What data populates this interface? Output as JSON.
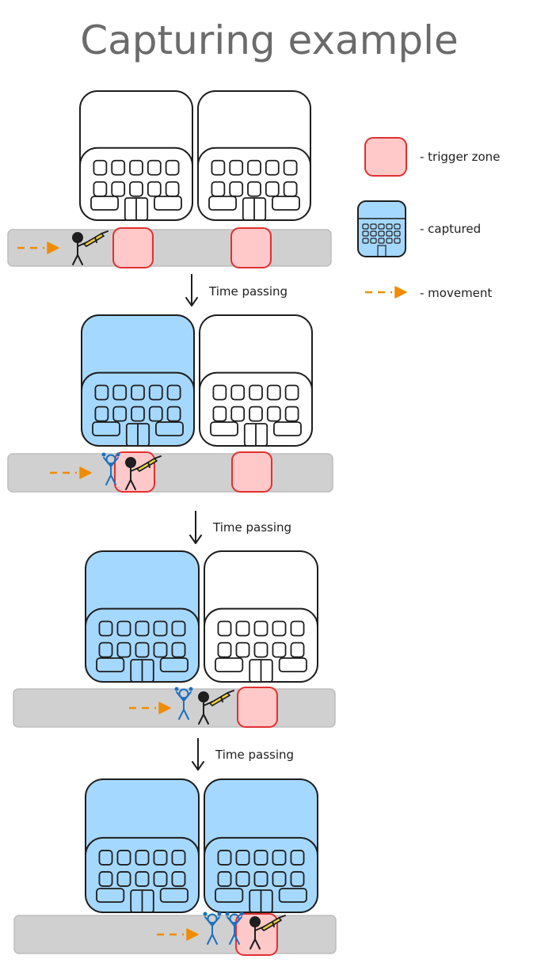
{
  "title": "Capturing example",
  "legend": {
    "trigger_zone": "- trigger zone",
    "captured": "- captured",
    "movement": "- movement"
  },
  "step_label": "Time passing",
  "colors": {
    "trigger_fill": "#ffc9c9",
    "trigger_stroke": "#e03131",
    "captured_fill": "#a5d8ff",
    "captured_stroke": "#1971c2",
    "road_fill": "#d0d0d0",
    "movement": "#f08c00",
    "ink": "#1e1e1e"
  },
  "stages": [
    {
      "buildings_captured": [
        false,
        false
      ],
      "captured_people": 0
    },
    {
      "buildings_captured": [
        true,
        false
      ],
      "captured_people": 1
    },
    {
      "buildings_captured": [
        true,
        false
      ],
      "captured_people": 1
    },
    {
      "buildings_captured": [
        true,
        true
      ],
      "captured_people": 2
    }
  ]
}
